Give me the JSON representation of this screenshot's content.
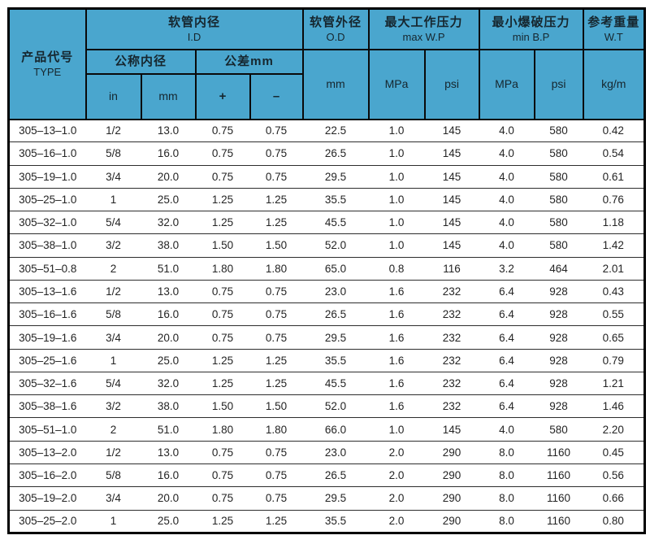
{
  "colors": {
    "header_bg": "#4aa6ce",
    "header_text": "#16262e",
    "body_text": "#242424",
    "outer_border": "#000000",
    "row_line": "#2d2d2d",
    "page_bg": "#ffffff"
  },
  "header": {
    "type": {
      "zh": "产品代号",
      "en": "TYPE"
    },
    "id": {
      "zh": "软管内径",
      "en": "I.D"
    },
    "nominal_id": "公称内径",
    "tolerance": "公差mm",
    "id_units": {
      "in": "in",
      "mm": "mm",
      "plus": "+",
      "minus": "–"
    },
    "od": {
      "zh": "软管外径",
      "en": "O.D",
      "unit": "mm"
    },
    "max_wp": {
      "zh": "最大工作压力",
      "en": "max W.P",
      "unit_mpa": "MPa",
      "unit_psi": "psi"
    },
    "min_bp": {
      "zh": "最小爆破压力",
      "en": "min B.P",
      "unit_mpa": "MPa",
      "unit_psi": "psi"
    },
    "wt": {
      "zh": "参考重量",
      "en": "W.T",
      "unit": "kg/m"
    }
  },
  "column_keys": [
    "type",
    "id-in",
    "id-mm",
    "tol-plus",
    "tol-minus",
    "od-mm",
    "maxwp-mpa",
    "maxwp-psi",
    "minbp-mpa",
    "minbp-psi",
    "wt-kgm"
  ],
  "rows": [
    [
      "305–13–1.0",
      "1/2",
      "13.0",
      "0.75",
      "0.75",
      "22.5",
      "1.0",
      "145",
      "4.0",
      "580",
      "0.42"
    ],
    [
      "305–16–1.0",
      "5/8",
      "16.0",
      "0.75",
      "0.75",
      "26.5",
      "1.0",
      "145",
      "4.0",
      "580",
      "0.54"
    ],
    [
      "305–19–1.0",
      "3/4",
      "20.0",
      "0.75",
      "0.75",
      "29.5",
      "1.0",
      "145",
      "4.0",
      "580",
      "0.61"
    ],
    [
      "305–25–1.0",
      "1",
      "25.0",
      "1.25",
      "1.25",
      "35.5",
      "1.0",
      "145",
      "4.0",
      "580",
      "0.76"
    ],
    [
      "305–32–1.0",
      "5/4",
      "32.0",
      "1.25",
      "1.25",
      "45.5",
      "1.0",
      "145",
      "4.0",
      "580",
      "1.18"
    ],
    [
      "305–38–1.0",
      "3/2",
      "38.0",
      "1.50",
      "1.50",
      "52.0",
      "1.0",
      "145",
      "4.0",
      "580",
      "1.42"
    ],
    [
      "305–51–0.8",
      "2",
      "51.0",
      "1.80",
      "1.80",
      "65.0",
      "0.8",
      "116",
      "3.2",
      "464",
      "2.01"
    ],
    [
      "305–13–1.6",
      "1/2",
      "13.0",
      "0.75",
      "0.75",
      "23.0",
      "1.6",
      "232",
      "6.4",
      "928",
      "0.43"
    ],
    [
      "305–16–1.6",
      "5/8",
      "16.0",
      "0.75",
      "0.75",
      "26.5",
      "1.6",
      "232",
      "6.4",
      "928",
      "0.55"
    ],
    [
      "305–19–1.6",
      "3/4",
      "20.0",
      "0.75",
      "0.75",
      "29.5",
      "1.6",
      "232",
      "6.4",
      "928",
      "0.65"
    ],
    [
      "305–25–1.6",
      "1",
      "25.0",
      "1.25",
      "1.25",
      "35.5",
      "1.6",
      "232",
      "6.4",
      "928",
      "0.79"
    ],
    [
      "305–32–1.6",
      "5/4",
      "32.0",
      "1.25",
      "1.25",
      "45.5",
      "1.6",
      "232",
      "6.4",
      "928",
      "1.21"
    ],
    [
      "305–38–1.6",
      "3/2",
      "38.0",
      "1.50",
      "1.50",
      "52.0",
      "1.6",
      "232",
      "6.4",
      "928",
      "1.46"
    ],
    [
      "305–51–1.0",
      "2",
      "51.0",
      "1.80",
      "1.80",
      "66.0",
      "1.0",
      "145",
      "4.0",
      "580",
      "2.20"
    ],
    [
      "305–13–2.0",
      "1/2",
      "13.0",
      "0.75",
      "0.75",
      "23.0",
      "2.0",
      "290",
      "8.0",
      "1160",
      "0.45"
    ],
    [
      "305–16–2.0",
      "5/8",
      "16.0",
      "0.75",
      "0.75",
      "26.5",
      "2.0",
      "290",
      "8.0",
      "1160",
      "0.56"
    ],
    [
      "305–19–2.0",
      "3/4",
      "20.0",
      "0.75",
      "0.75",
      "29.5",
      "2.0",
      "290",
      "8.0",
      "1160",
      "0.66"
    ],
    [
      "305–25–2.0",
      "1",
      "25.0",
      "1.25",
      "1.25",
      "35.5",
      "2.0",
      "290",
      "8.0",
      "1160",
      "0.80"
    ]
  ]
}
